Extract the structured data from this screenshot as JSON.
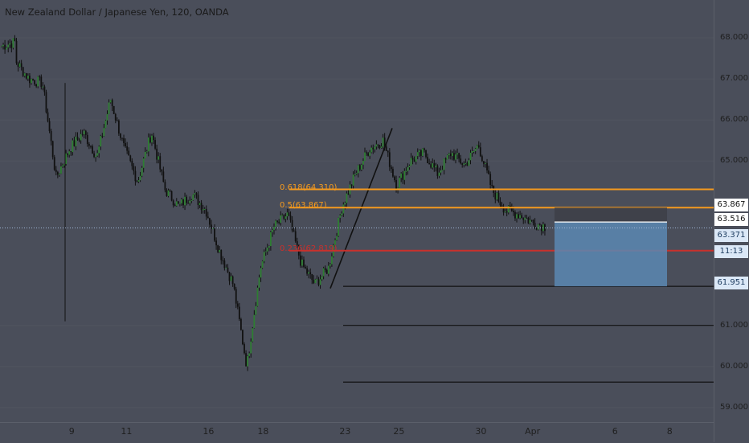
{
  "chart_data": {
    "type": "candlestick",
    "title": "New Zealand Dollar / Japanese Yen, 120, OANDA",
    "y_ticks": [
      "68.000",
      "67.000",
      "66.000",
      "65.000",
      "61.000",
      "60.000",
      "59.000"
    ],
    "x_ticks": [
      "9",
      "11",
      "16",
      "18",
      "23",
      "25",
      "30",
      "Apr",
      "6",
      "8"
    ],
    "ylim": [
      58.9,
      68.3
    ],
    "price_path": [
      [
        67.8,
        67.9
      ],
      [
        67.45,
        67.0
      ],
      [
        67.0,
        66.9
      ],
      [
        66.9,
        64.6
      ],
      [
        64.6,
        65.3
      ],
      [
        65.3,
        65.7
      ],
      [
        65.7,
        65.1
      ],
      [
        65.1,
        66.5
      ],
      [
        66.5,
        65.3
      ],
      [
        65.3,
        64.5
      ],
      [
        64.5,
        65.7
      ],
      [
        65.7,
        64.3
      ],
      [
        64.3,
        63.9
      ],
      [
        63.9,
        64.2
      ],
      [
        64.2,
        63.8
      ],
      [
        63.8,
        62.8
      ],
      [
        62.8,
        62.0
      ],
      [
        62.0,
        60.0
      ],
      [
        60.0,
        62.4
      ],
      [
        62.4,
        63.4
      ],
      [
        63.4,
        63.7
      ],
      [
        63.7,
        62.5
      ],
      [
        62.5,
        62.0
      ],
      [
        62.0,
        62.4
      ],
      [
        62.4,
        63.9
      ],
      [
        63.9,
        64.7
      ],
      [
        64.7,
        65.3
      ],
      [
        65.3,
        65.5
      ],
      [
        65.5,
        64.4
      ],
      [
        64.4,
        65.0
      ],
      [
        65.0,
        65.2
      ],
      [
        65.2,
        64.7
      ],
      [
        64.7,
        65.2
      ],
      [
        65.2,
        64.9
      ],
      [
        64.9,
        65.4
      ],
      [
        65.4,
        64.3
      ],
      [
        64.3,
        63.8
      ],
      [
        63.8,
        63.7
      ],
      [
        63.7,
        63.5
      ],
      [
        63.5,
        63.4
      ]
    ],
    "fib_levels": [
      {
        "label": "0.618(64.310)",
        "value": 64.31,
        "color": "#f59a1e"
      },
      {
        "label": "0.5(63.867)",
        "value": 63.867,
        "color": "#f59a1e"
      },
      {
        "label": "0.236(62.819)",
        "value": 62.819,
        "color": "#c9302c"
      }
    ],
    "levels": [
      61.951,
      61.0,
      59.62
    ],
    "position": {
      "entry": 63.516,
      "stop": 63.867,
      "target": 61.951
    },
    "price_badges": [
      {
        "text": "63.867",
        "bg": "#ffffff",
        "fg": "#111111",
        "value": 63.867
      },
      {
        "text": "63.516",
        "bg": "#ffffff",
        "fg": "#111111",
        "value": 63.516
      },
      {
        "text": "63.371",
        "bg": "#dbe8f7",
        "fg": "#1b3a5e",
        "value": 63.371
      },
      {
        "text": "11:13",
        "bg": "#dbe8f7",
        "fg": "#1b3a5e",
        "value": null
      },
      {
        "text": "61.951",
        "bg": "#dbe8f7",
        "fg": "#1b3a5e",
        "value": 61.951
      }
    ],
    "current_price": 63.371,
    "colors": {
      "background": "#4a4e5a",
      "up": "#2e7d32",
      "down": "#111111",
      "target_zone": "#5b88b3",
      "stop_zone": "#3d4048"
    }
  }
}
